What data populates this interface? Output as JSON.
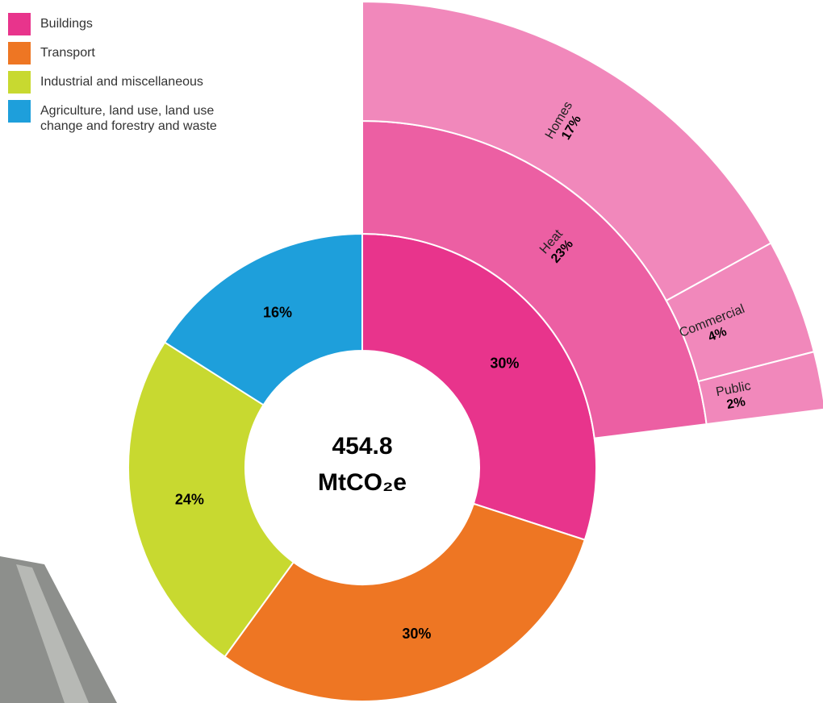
{
  "chart_data": {
    "type": "sunburst",
    "total": 454.8,
    "unit": "MtCO₂e",
    "segments": [
      {
        "name": "Buildings",
        "value": 30,
        "value_label": "30%",
        "color": "#e8348c",
        "children": [
          {
            "name": "Heat",
            "value": 23,
            "value_label": "23%",
            "color": "#ec5fa3",
            "children": [
              {
                "name": "Homes",
                "value": 17,
                "value_label": "17%",
                "color": "#f188bb"
              },
              {
                "name": "Commercial",
                "value": 4,
                "value_label": "4%",
                "color": "#f188bb"
              },
              {
                "name": "Public",
                "value": 2,
                "value_label": "2%",
                "color": "#f188bb"
              }
            ]
          }
        ]
      },
      {
        "name": "Transport",
        "value": 30,
        "value_label": "30%",
        "color": "#ee7623"
      },
      {
        "name": "Industrial and miscellaneous",
        "value": 24,
        "value_label": "24%",
        "color": "#c8d930"
      },
      {
        "name": "Agriculture, land use, land use change and forestry and waste",
        "value": 16,
        "value_label": "16%",
        "color": "#1e9fdb"
      }
    ]
  }
}
